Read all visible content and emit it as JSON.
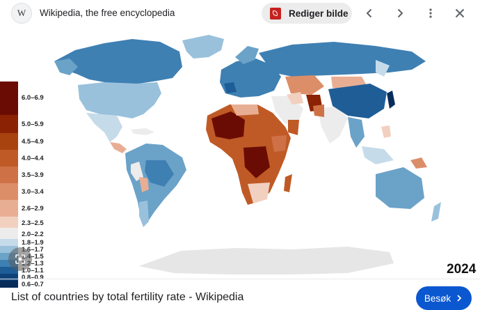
{
  "header": {
    "logo_letter": "W",
    "site_name": "Wikipedia, the free encyclopedia",
    "edit_button_label": "Rediger bilde"
  },
  "map": {
    "year": "2024",
    "legend": [
      {
        "label": "6.0–6.9",
        "color": "#6b0c04"
      },
      {
        "label": "5.0–5.9",
        "color": "#8c2204"
      },
      {
        "label": "4.5–4.9",
        "color": "#a8420f"
      },
      {
        "label": "4.0–4.4",
        "color": "#bf5a26"
      },
      {
        "label": "3.5–3.9",
        "color": "#cf7146"
      },
      {
        "label": "3.0–3.4",
        "color": "#dc8e69"
      },
      {
        "label": "2.6–2.9",
        "color": "#e8ae93"
      },
      {
        "label": "2.3–2.5",
        "color": "#f2d0c0"
      },
      {
        "label": "2.0–2.2",
        "color": "#ececec"
      },
      {
        "label": "1.8–1.9",
        "color": "#c6dbea"
      },
      {
        "label": "1.6–1.7",
        "color": "#99c1dc"
      },
      {
        "label": "1.4–1.5",
        "color": "#6ba2c8"
      },
      {
        "label": "1.2–1.3",
        "color": "#3f80b3"
      },
      {
        "label": "1.0–1.1",
        "color": "#1f5d97"
      },
      {
        "label": "0.8–0.9",
        "color": "#0f4278"
      },
      {
        "label": "0.6–0.7",
        "color": "#082d5a"
      }
    ]
  },
  "footer": {
    "page_title": "List of countries by total fertility rate - Wikipedia",
    "visit_button_label": "Besøk"
  },
  "colors": {
    "accent": "#0b57d0",
    "pdf_red": "#c5221f"
  }
}
